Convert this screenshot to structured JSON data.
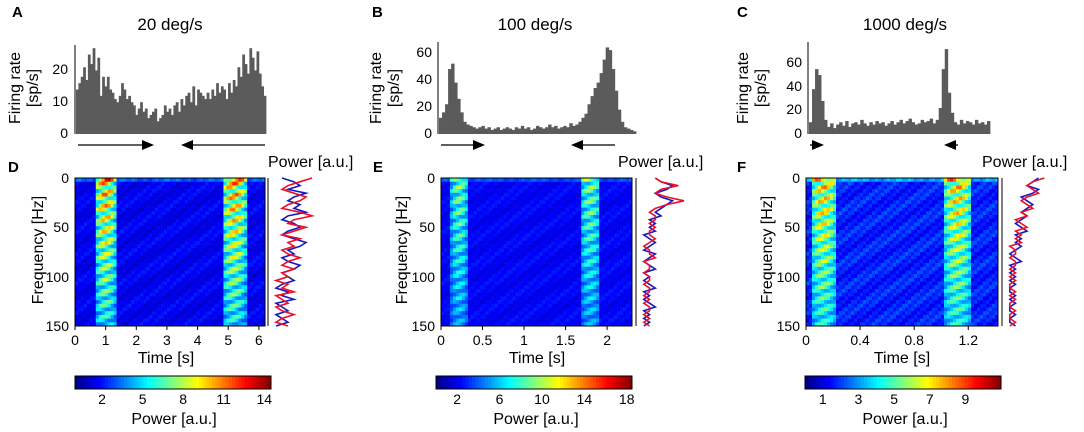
{
  "chart_data": [
    {
      "panel": "A",
      "type": "bar",
      "title": "20 deg/s",
      "ylabel_line1": "Firing rate",
      "ylabel_line2": "[sp/s]",
      "yticks": [
        "0",
        "10",
        "20"
      ],
      "ylim": [
        0,
        28
      ],
      "xlim": [
        0,
        6.2
      ],
      "values": [
        14,
        16,
        18,
        21,
        17,
        25,
        22,
        27,
        20,
        24,
        12,
        18,
        15,
        18,
        14,
        13,
        11,
        10,
        12,
        16,
        14,
        11,
        12,
        10,
        9,
        6,
        8,
        10,
        7,
        8,
        5,
        6,
        7,
        8,
        4,
        5,
        6,
        9,
        7,
        8,
        6,
        9,
        10,
        7,
        11,
        9,
        12,
        13,
        10,
        15,
        9,
        14,
        13,
        12,
        11,
        13,
        11,
        14,
        12,
        16,
        13,
        15,
        14,
        11,
        16,
        13,
        17,
        15,
        21,
        18,
        25,
        22,
        19,
        27,
        24,
        20,
        26,
        19,
        15,
        12
      ],
      "arrows": [
        "right",
        "left"
      ]
    },
    {
      "panel": "B",
      "type": "bar",
      "title": "100 deg/s",
      "ylabel_line1": "Firing rate",
      "ylabel_line2": "[sp/s]",
      "yticks": [
        "0",
        "20",
        "40",
        "60"
      ],
      "ylim": [
        0,
        68
      ],
      "xlim": [
        0,
        2.3
      ],
      "values": [
        12,
        16,
        22,
        48,
        52,
        38,
        26,
        16,
        9,
        7,
        6,
        5,
        4,
        5,
        6,
        4,
        5,
        3,
        4,
        5,
        3,
        4,
        5,
        4,
        3,
        5,
        4,
        6,
        4,
        5,
        3,
        4,
        6,
        5,
        4,
        5,
        7,
        5,
        6,
        4,
        5,
        6,
        5,
        8,
        6,
        7,
        9,
        12,
        15,
        22,
        28,
        34,
        38,
        45,
        55,
        64,
        62,
        48,
        32,
        18,
        9,
        5,
        4,
        3,
        2
      ],
      "arrows": [
        "right",
        "left"
      ]
    },
    {
      "panel": "C",
      "type": "bar",
      "title": "1000 deg/s",
      "ylabel_line1": "Firing rate",
      "ylabel_line2": "[sp/s]",
      "yticks": [
        "0",
        "20",
        "40",
        "60"
      ],
      "ylim": [
        0,
        78
      ],
      "xlim": [
        0,
        1.42
      ],
      "values": [
        10,
        38,
        55,
        50,
        28,
        12,
        6,
        9,
        5,
        8,
        10,
        7,
        11,
        6,
        9,
        10,
        8,
        12,
        9,
        7,
        10,
        8,
        11,
        9,
        10,
        7,
        9,
        11,
        8,
        10,
        12,
        9,
        11,
        13,
        10,
        8,
        9,
        12,
        10,
        11,
        13,
        9,
        12,
        22,
        55,
        72,
        35,
        18,
        10,
        8,
        12,
        9,
        11,
        10,
        8,
        12,
        9,
        10,
        8,
        11
      ],
      "arrows": [
        "right",
        "left"
      ]
    },
    {
      "panel": "D",
      "type": "heatmap",
      "xlabel": "Time [s]",
      "ylabel": "Frequency [Hz]",
      "xlim": [
        0,
        6.2
      ],
      "ylim": [
        0,
        150
      ],
      "xticks": [
        "0",
        "1",
        "2",
        "3",
        "4",
        "5",
        "6"
      ],
      "xtick_values": [
        0,
        1,
        2,
        3,
        4,
        5,
        6
      ],
      "yticks": [
        "0",
        "50",
        "100",
        "150"
      ],
      "ytick_values": [
        0,
        50,
        100,
        150
      ],
      "bands_s": [
        [
          0.65,
          1.35
        ],
        [
          4.8,
          5.6
        ]
      ],
      "band_peak": 10,
      "background": 1.6,
      "power_title": "Power [a.u.]",
      "colorbar_ticks": [
        "2",
        "5",
        "8",
        "11",
        "14"
      ],
      "colorbar_values": [
        2,
        5,
        8,
        11,
        14
      ],
      "colorbar_range": [
        0,
        14.5
      ],
      "colorbar_label": "Power [a.u.]",
      "profile_blue": [
        2,
        4,
        5,
        3,
        6,
        4,
        3,
        5,
        4,
        6,
        3,
        2,
        4,
        5,
        3,
        2,
        4,
        6,
        5,
        3,
        4,
        2,
        3,
        5,
        4,
        2,
        3,
        4,
        2,
        1,
        3,
        2,
        4,
        1,
        2,
        3,
        1,
        2,
        3,
        1
      ],
      "profile_red": [
        7,
        5,
        3,
        2,
        4,
        6,
        5,
        3,
        2,
        5,
        7,
        4,
        3,
        6,
        4,
        2,
        5,
        3,
        4,
        2,
        3,
        5,
        3,
        2,
        4,
        2,
        3,
        1,
        3,
        2,
        4,
        1,
        2,
        3,
        1,
        2,
        4,
        2,
        1,
        3
      ]
    },
    {
      "panel": "E",
      "type": "heatmap",
      "xlabel": "Time [s]",
      "ylabel": "Frequency [Hz]",
      "xlim": [
        0,
        2.3
      ],
      "ylim": [
        0,
        150
      ],
      "xticks": [
        "0",
        "0.5",
        "1",
        "1.5",
        "2"
      ],
      "xtick_values": [
        0,
        0.5,
        1,
        1.5,
        2
      ],
      "yticks": [
        "0",
        "50",
        "100",
        "150"
      ],
      "ytick_values": [
        0,
        50,
        100,
        150
      ],
      "bands_s": [
        [
          0.12,
          0.32
        ],
        [
          1.68,
          1.92
        ]
      ],
      "band_peak": 8,
      "background": 2.2,
      "power_title": "Power [a.u.]",
      "colorbar_ticks": [
        "2",
        "6",
        "10",
        "14",
        "18"
      ],
      "colorbar_values": [
        2,
        6,
        10,
        14,
        18
      ],
      "colorbar_range": [
        0,
        18.5
      ],
      "colorbar_label": "Power [a.u.]",
      "profile_blue": [
        3,
        4,
        6,
        5,
        3,
        4,
        6,
        5,
        4,
        3,
        4,
        2,
        3,
        2,
        3,
        1,
        2,
        3,
        2,
        1,
        3,
        2,
        1,
        2,
        3,
        1,
        2,
        1,
        2,
        3,
        1,
        2,
        1,
        2,
        3,
        1,
        2,
        1,
        2,
        1
      ],
      "profile_red": [
        3,
        4,
        7,
        4,
        3,
        5,
        8,
        5,
        3,
        2,
        3,
        3,
        2,
        3,
        2,
        2,
        3,
        2,
        1,
        2,
        2,
        3,
        1,
        2,
        2,
        1,
        2,
        2,
        1,
        2,
        2,
        1,
        2,
        1,
        2,
        2,
        1,
        2,
        1,
        2
      ]
    },
    {
      "panel": "F",
      "type": "heatmap",
      "xlabel": "Time [s]",
      "ylabel": "Frequency [Hz]",
      "xlim": [
        0,
        1.42
      ],
      "ylim": [
        0,
        150
      ],
      "xticks": [
        "0",
        "0.4",
        "0.8",
        "1.2"
      ],
      "xtick_values": [
        0,
        0.4,
        0.8,
        1.2
      ],
      "yticks": [
        "0",
        "50",
        "100",
        "150"
      ],
      "ytick_values": [
        0,
        50,
        100,
        150
      ],
      "bands_s": [
        [
          0.04,
          0.22
        ],
        [
          1.02,
          1.22
        ]
      ],
      "band_peak": 6.5,
      "background": 1.7,
      "power_title": "Power [a.u.]",
      "colorbar_ticks": [
        "1",
        "3",
        "5",
        "7",
        "9"
      ],
      "colorbar_values": [
        1,
        3,
        5,
        7,
        9
      ],
      "colorbar_range": [
        0,
        11
      ],
      "colorbar_label": "Power [a.u.]",
      "profile_blue": [
        6,
        5,
        4,
        6,
        5,
        3,
        4,
        5,
        4,
        3,
        4,
        3,
        2,
        3,
        4,
        2,
        3,
        2,
        3,
        2,
        1,
        2,
        3,
        1,
        2,
        1,
        2,
        1,
        2,
        1,
        1,
        2,
        1,
        2,
        1,
        1,
        2,
        1,
        1,
        2
      ],
      "profile_red": [
        7,
        5,
        4,
        5,
        6,
        4,
        3,
        4,
        5,
        3,
        4,
        2,
        3,
        4,
        2,
        3,
        2,
        3,
        1,
        2,
        2,
        1,
        2,
        2,
        1,
        2,
        1,
        2,
        1,
        1,
        2,
        1,
        2,
        1,
        1,
        2,
        1,
        1,
        2,
        1
      ]
    }
  ]
}
